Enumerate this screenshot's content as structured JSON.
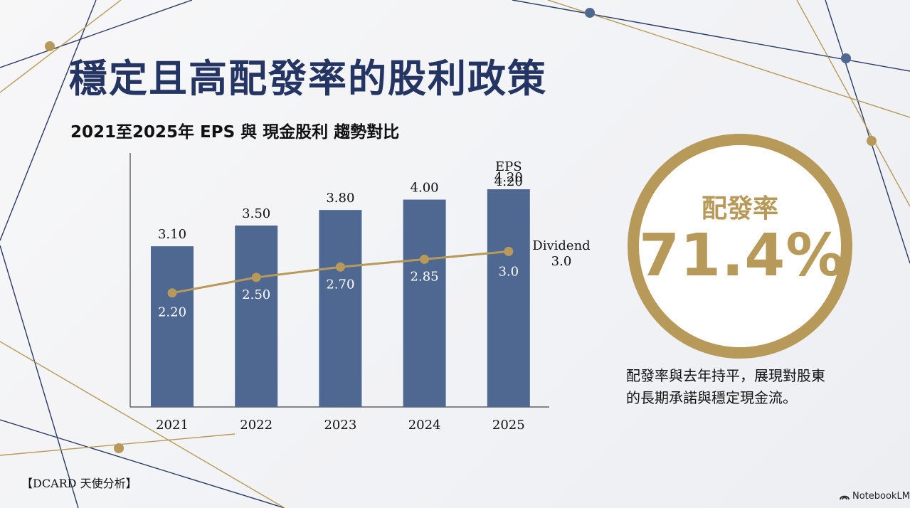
{
  "title": "穩定且高配發率的股利政策",
  "subtitle": "2021至2025年 EPS 與 現金股利 趨勢對比",
  "colors": {
    "navy": "#243463",
    "bar": "#4e6891",
    "gold": "#b79a5a"
  },
  "chart_data": {
    "type": "bar",
    "categories": [
      "2021",
      "2022",
      "2023",
      "2024",
      "2025"
    ],
    "series": [
      {
        "name": "EPS",
        "type": "bar",
        "values": [
          3.1,
          3.5,
          3.8,
          4.0,
          4.2
        ],
        "labels": [
          "3.10",
          "3.50",
          "3.80",
          "4.00",
          "4.20"
        ]
      },
      {
        "name": "Dividend",
        "type": "line",
        "values": [
          2.2,
          2.5,
          2.7,
          2.85,
          3.0
        ],
        "labels": [
          "2.20",
          "2.50",
          "2.70",
          "2.85",
          "3.0"
        ]
      }
    ],
    "ylim": [
      0,
      4.9
    ],
    "grid": false,
    "legend": "inline-labels-at-2025",
    "eps_legend_value": "4.20",
    "dividend_legend_value": "3.0"
  },
  "payout": {
    "label": "配發率",
    "value": "71.4%",
    "description_lines": [
      "配發率與去年持平，展現對股東",
      "的長期承諾與穩定現金流。"
    ]
  },
  "source": "【DCARD 天使分析】",
  "brand": "NotebookLM"
}
